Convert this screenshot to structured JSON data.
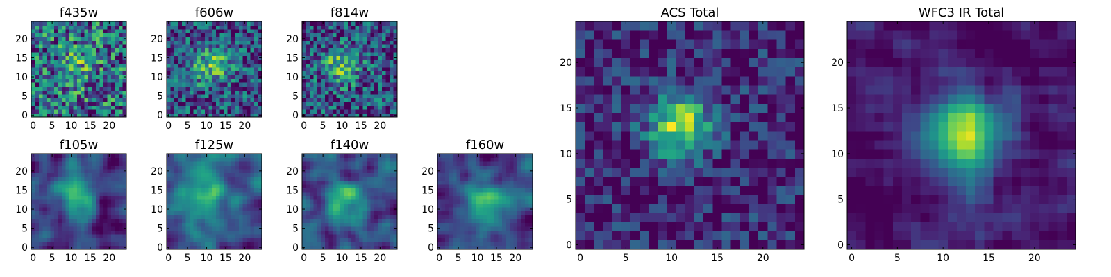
{
  "colors": {
    "colormap": "viridis",
    "frame": "#000000",
    "background": "#ffffff"
  },
  "chart_data": [
    {
      "type": "heatmap",
      "title": "f435w",
      "grid_size": 25,
      "peak": [
        12,
        13
      ],
      "blob_strength": 0.2,
      "blob_sigma": 4.0,
      "noise": 0.9,
      "smoothness": 0,
      "vmin": 0,
      "vmax": 1,
      "xticks": [
        "0",
        "5",
        "10",
        "15",
        "20"
      ],
      "yticks": [
        "0",
        "5",
        "10",
        "15",
        "20"
      ],
      "xlim": [
        0,
        25
      ],
      "ylim": [
        0,
        25
      ],
      "grid": false
    },
    {
      "type": "heatmap",
      "title": "f606w",
      "grid_size": 25,
      "peak": [
        11,
        13
      ],
      "blob_strength": 0.45,
      "blob_sigma": 3.5,
      "noise": 0.75,
      "smoothness": 0,
      "vmin": 0,
      "vmax": 1,
      "xticks": [
        "0",
        "5",
        "10",
        "15",
        "20"
      ],
      "yticks": [
        "0",
        "5",
        "10",
        "15",
        "20"
      ],
      "xlim": [
        0,
        25
      ],
      "ylim": [
        0,
        25
      ],
      "grid": false
    },
    {
      "type": "heatmap",
      "title": "f814w",
      "grid_size": 25,
      "peak": [
        10,
        13
      ],
      "blob_strength": 0.45,
      "blob_sigma": 3.5,
      "noise": 0.75,
      "smoothness": 0,
      "vmin": 0,
      "vmax": 1,
      "xticks": [
        "0",
        "5",
        "10",
        "15",
        "20"
      ],
      "yticks": [
        "0",
        "5",
        "10",
        "15",
        "20"
      ],
      "xlim": [
        0,
        25
      ],
      "ylim": [
        0,
        25
      ],
      "grid": false
    },
    {
      "type": "heatmap",
      "title": "f105w",
      "grid_size": 25,
      "peak": [
        11,
        13
      ],
      "blob_strength": 0.6,
      "blob_sigma": 3.5,
      "noise": 0.6,
      "smoothness": 2,
      "vmin": 0,
      "vmax": 1,
      "xticks": [
        "0",
        "5",
        "10",
        "15",
        "20"
      ],
      "yticks": [
        "0",
        "5",
        "10",
        "15",
        "20"
      ],
      "xlim": [
        0,
        25
      ],
      "ylim": [
        0,
        25
      ],
      "grid": false
    },
    {
      "type": "heatmap",
      "title": "f125w",
      "grid_size": 25,
      "peak": [
        9,
        14
      ],
      "blob_strength": 0.45,
      "blob_sigma": 5.0,
      "noise": 0.6,
      "smoothness": 2,
      "vmin": 0,
      "vmax": 1,
      "xticks": [
        "0",
        "5",
        "10",
        "15",
        "20"
      ],
      "yticks": [
        "0",
        "5",
        "10",
        "15",
        "20"
      ],
      "xlim": [
        0,
        25
      ],
      "ylim": [
        0,
        25
      ],
      "grid": false
    },
    {
      "type": "heatmap",
      "title": "f140w",
      "grid_size": 25,
      "peak": [
        11,
        12
      ],
      "blob_strength": 0.55,
      "blob_sigma": 3.5,
      "noise": 0.6,
      "smoothness": 2,
      "vmin": 0,
      "vmax": 1,
      "xticks": [
        "0",
        "5",
        "10",
        "15",
        "20"
      ],
      "yticks": [
        "0",
        "5",
        "10",
        "15",
        "20"
      ],
      "xlim": [
        0,
        25
      ],
      "ylim": [
        0,
        25
      ],
      "grid": false
    },
    {
      "type": "heatmap",
      "title": "f160w",
      "grid_size": 25,
      "peak": [
        12,
        11
      ],
      "blob_strength": 0.55,
      "blob_sigma": 4.0,
      "noise": 0.6,
      "smoothness": 2,
      "vmin": 0,
      "vmax": 1,
      "xticks": [
        "0",
        "5",
        "10",
        "15",
        "20"
      ],
      "yticks": [
        "0",
        "5",
        "10",
        "15",
        "20"
      ],
      "xlim": [
        0,
        25
      ],
      "ylim": [
        0,
        25
      ],
      "grid": false
    },
    {
      "type": "heatmap",
      "title": "ACS Total",
      "grid_size": 25,
      "peak": [
        11,
        13
      ],
      "blob_strength": 0.75,
      "blob_sigma": 2.5,
      "noise": 0.5,
      "smoothness": 0,
      "vmin": 0,
      "vmax": 1,
      "xticks": [
        "0",
        "5",
        "10",
        "15",
        "20"
      ],
      "yticks": [
        "0",
        "5",
        "10",
        "15",
        "20"
      ],
      "xlim": [
        0,
        25
      ],
      "ylim": [
        0,
        25
      ],
      "grid": false
    },
    {
      "type": "heatmap",
      "title": "WFC3 IR Total",
      "grid_size": 25,
      "peak": [
        12,
        12
      ],
      "blob_strength": 0.85,
      "blob_sigma": 3.0,
      "noise": 0.4,
      "smoothness": 1,
      "vmin": 0,
      "vmax": 1,
      "xticks": [
        "0",
        "5",
        "10",
        "15",
        "20"
      ],
      "yticks": [
        "0",
        "5",
        "10",
        "15",
        "20"
      ],
      "xlim": [
        0,
        25
      ],
      "ylim": [
        0,
        25
      ],
      "grid": false
    }
  ]
}
